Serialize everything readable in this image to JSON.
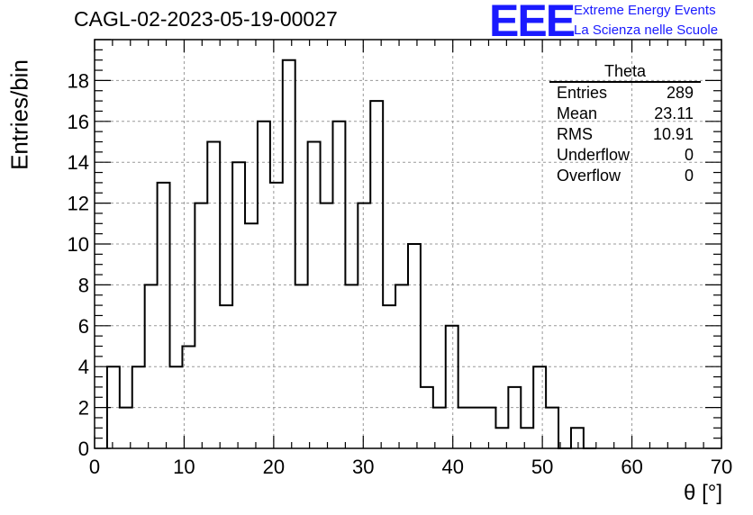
{
  "title": "CAGL-02-2023-05-19-00027",
  "logo": {
    "mark": "EEE",
    "line1": "Extreme Energy Events",
    "line2": "La Scienza nelle Scuole",
    "color": "#1a1aff"
  },
  "stats": {
    "title": "Theta",
    "rows": [
      {
        "label": "Entries",
        "value": "289"
      },
      {
        "label": "Mean",
        "value": "23.11"
      },
      {
        "label": "RMS",
        "value": "10.91"
      },
      {
        "label": "Underflow",
        "value": "0"
      },
      {
        "label": "Overflow",
        "value": "0"
      }
    ]
  },
  "chart_data": {
    "type": "bar",
    "title": "CAGL-02-2023-05-19-00027",
    "xlabel": "θ [°]",
    "ylabel": "Entries/bin",
    "xlim": [
      0,
      70
    ],
    "ylim": [
      0,
      20
    ],
    "xticks": [
      0,
      10,
      20,
      30,
      40,
      50,
      60,
      70
    ],
    "yticks": [
      0,
      2,
      4,
      6,
      8,
      10,
      12,
      14,
      16,
      18
    ],
    "grid": true,
    "bin_width": 1.4,
    "bin_start": 1.4,
    "values": [
      4,
      2,
      4,
      8,
      13,
      4,
      5,
      12,
      15,
      7,
      14,
      11,
      16,
      13,
      19,
      8,
      15,
      12,
      16,
      8,
      12,
      17,
      7,
      8,
      10,
      3,
      2,
      6,
      2,
      2,
      2,
      1,
      3,
      1,
      4,
      2,
      0,
      1,
      0
    ]
  }
}
